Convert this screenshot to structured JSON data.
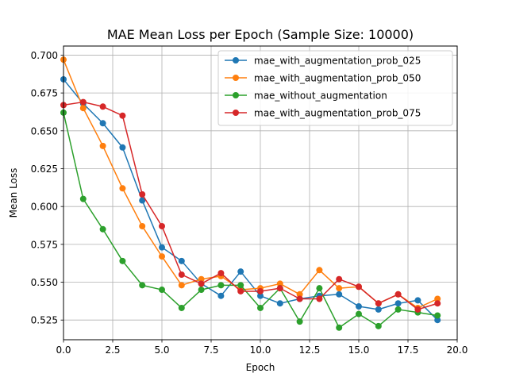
{
  "chart_data": {
    "type": "line",
    "title": "MAE Mean Loss per Epoch (Sample Size: 10000)",
    "xlabel": "Epoch",
    "ylabel": "Mean Loss",
    "xlim": [
      0,
      20
    ],
    "ylim": [
      0.512,
      0.706
    ],
    "x_ticks": [
      0,
      2.5,
      5,
      7.5,
      10,
      12.5,
      15,
      17.5,
      20
    ],
    "x_tick_labels": [
      "0.0",
      "2.5",
      "5.0",
      "7.5",
      "10.0",
      "12.5",
      "15.0",
      "17.5",
      "20.0"
    ],
    "y_ticks": [
      0.525,
      0.55,
      0.575,
      0.6,
      0.625,
      0.65,
      0.675,
      0.7
    ],
    "y_tick_labels": [
      "0.525",
      "0.550",
      "0.575",
      "0.600",
      "0.625",
      "0.650",
      "0.675",
      "0.700"
    ],
    "grid": true,
    "legend_position": "top-right",
    "x": [
      0,
      1,
      2,
      3,
      4,
      5,
      6,
      7,
      8,
      9,
      10,
      11,
      12,
      13,
      14,
      15,
      16,
      17,
      18,
      19
    ],
    "series": [
      {
        "name": "mae_with_augmentation_prob_025",
        "color": "#1f77b4",
        "values": [
          0.684,
          0.668,
          0.655,
          0.639,
          0.604,
          0.573,
          0.564,
          0.549,
          0.541,
          0.557,
          0.541,
          0.536,
          0.539,
          0.541,
          0.542,
          0.534,
          0.532,
          0.536,
          0.538,
          0.525
        ]
      },
      {
        "name": "mae_with_augmentation_prob_050",
        "color": "#ff7f0e",
        "values": [
          0.697,
          0.665,
          0.64,
          0.612,
          0.587,
          0.567,
          0.548,
          0.552,
          0.554,
          0.545,
          0.546,
          0.549,
          0.542,
          0.558,
          0.546,
          0.547,
          0.536,
          0.542,
          0.533,
          0.539
        ]
      },
      {
        "name": "mae_without_augmentation",
        "color": "#2ca02c",
        "values": [
          0.662,
          0.605,
          0.585,
          0.564,
          0.548,
          0.545,
          0.533,
          0.545,
          0.548,
          0.548,
          0.533,
          0.546,
          0.524,
          0.546,
          0.52,
          0.529,
          0.521,
          0.532,
          0.53,
          0.528
        ]
      },
      {
        "name": "mae_with_augmentation_prob_075",
        "color": "#d62728",
        "values": [
          0.667,
          0.669,
          0.666,
          0.66,
          0.608,
          0.587,
          0.555,
          0.549,
          0.556,
          0.544,
          0.544,
          0.546,
          0.539,
          0.539,
          0.552,
          0.547,
          0.536,
          0.542,
          0.532,
          0.536
        ]
      }
    ]
  }
}
